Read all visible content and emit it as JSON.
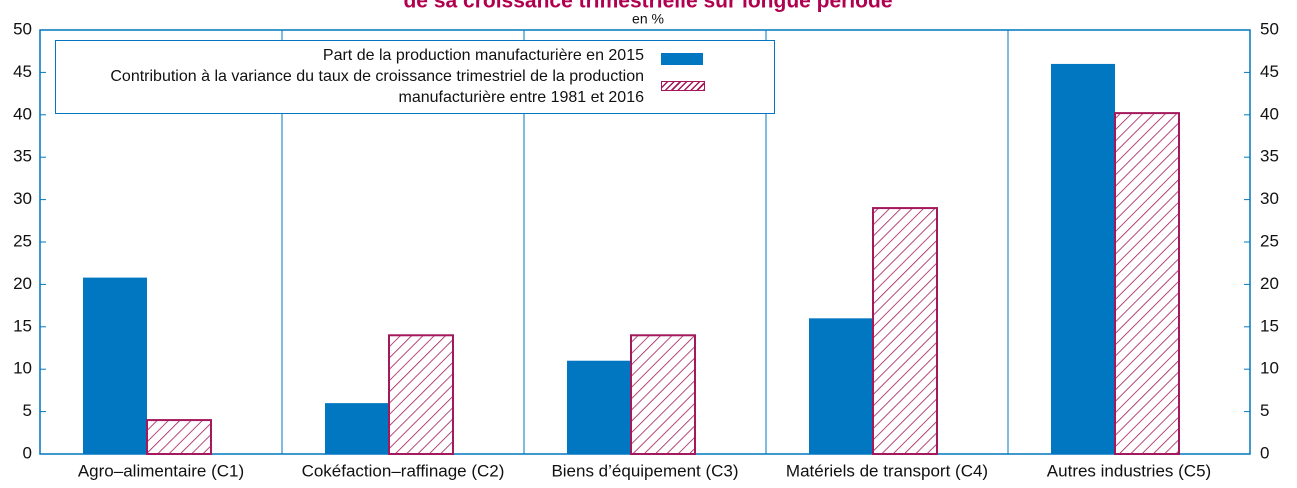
{
  "chart_data": {
    "type": "bar",
    "title": "de sa croissance trimestrielle sur longue période",
    "subtitle": "en %",
    "categories": [
      "Agro–alimentaire (C1)",
      "Cokéfaction–raffinage (C2)",
      "Biens d’équipement (C3)",
      "Matériels de transport (C4)",
      "Autres industries (C5)"
    ],
    "series": [
      {
        "name": "Part de la production manufacturière en 2015",
        "color": "#0077c0",
        "values": [
          20.8,
          6,
          11,
          16,
          46
        ]
      },
      {
        "name": "Contribution à la variance du taux de croissance trimestriel de la production manufacturière entre 1981 et 2016",
        "color": "#a3195b",
        "values": [
          4,
          14,
          14,
          29,
          40.2
        ]
      }
    ],
    "ylim": [
      0,
      50
    ],
    "yticks": [
      0,
      5,
      10,
      15,
      20,
      25,
      30,
      35,
      40,
      45,
      50
    ],
    "y2lim": [
      0,
      50
    ],
    "y2ticks": [
      0,
      5,
      10,
      15,
      20,
      25,
      30,
      35,
      40,
      45,
      50
    ],
    "grid": true
  }
}
